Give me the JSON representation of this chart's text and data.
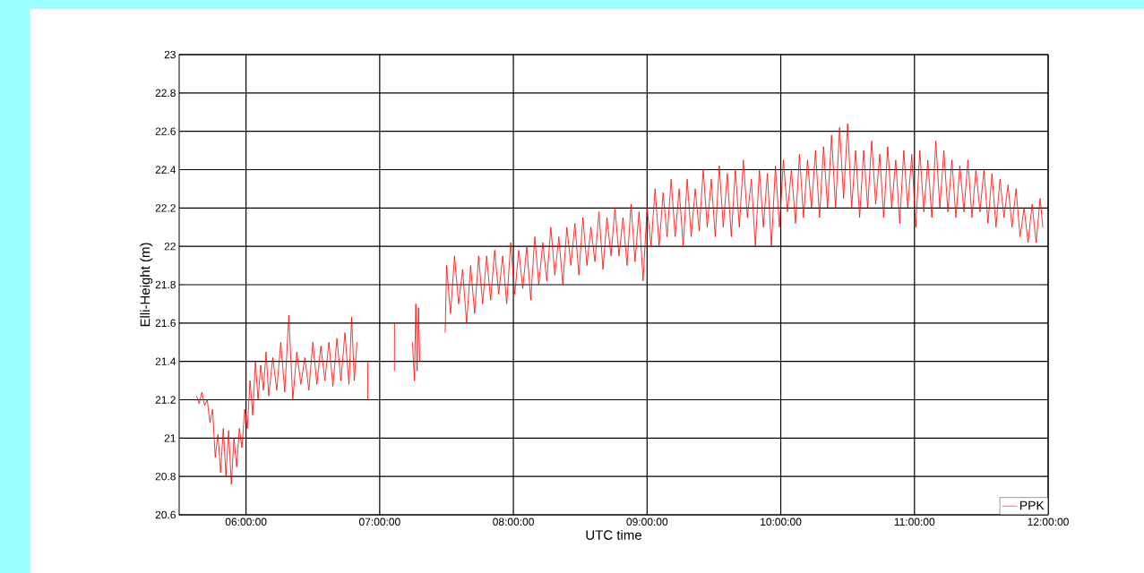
{
  "chart_data": {
    "type": "line",
    "xlabel": "UTC time",
    "ylabel": "Elli-Height (m)",
    "xlim": [
      5.5,
      12
    ],
    "ylim": [
      20.6,
      23
    ],
    "xticks": [
      {
        "value": 6,
        "label": "06:00:00"
      },
      {
        "value": 7,
        "label": "07:00:00"
      },
      {
        "value": 8,
        "label": "08:00:00"
      },
      {
        "value": 9,
        "label": "09:00:00"
      },
      {
        "value": 10,
        "label": "10:00:00"
      },
      {
        "value": 11,
        "label": "11:00:00"
      },
      {
        "value": 12,
        "label": "12:00:00"
      }
    ],
    "yticks": [
      20.6,
      20.8,
      21,
      21.2,
      21.4,
      21.6,
      21.8,
      22,
      22.2,
      22.4,
      22.6,
      22.8,
      23
    ],
    "grid": true,
    "legend": "bottom right",
    "series": [
      {
        "name": "PPK",
        "color": "#ff0000",
        "x": [
          5.63,
          5.65,
          5.67,
          5.69,
          5.71,
          5.73,
          5.75,
          5.76,
          5.77,
          5.79,
          5.81,
          5.83,
          5.85,
          5.87,
          5.89,
          5.91,
          5.93,
          5.95,
          5.97,
          5.99,
          6.01,
          6.03,
          6.05,
          6.07,
          6.09,
          6.11,
          6.13,
          6.15,
          6.17,
          6.2,
          6.23,
          6.26,
          6.29,
          6.32,
          6.35,
          6.38,
          6.41,
          6.44,
          6.47,
          6.5,
          6.53,
          6.56,
          6.59,
          6.62,
          6.65,
          6.68,
          6.71,
          6.74,
          6.77,
          6.79,
          6.81,
          6.83,
          6.87,
          6.91,
          6.911,
          6.95,
          7.11,
          7.111,
          7.18,
          7.245,
          7.26,
          7.27,
          7.28,
          7.29,
          7.3,
          7.4,
          7.49,
          7.5,
          7.53,
          7.56,
          7.59,
          7.62,
          7.65,
          7.68,
          7.71,
          7.74,
          7.77,
          7.8,
          7.83,
          7.86,
          7.89,
          7.92,
          7.95,
          7.98,
          8.01,
          8.04,
          8.07,
          8.1,
          8.13,
          8.16,
          8.19,
          8.22,
          8.25,
          8.28,
          8.31,
          8.34,
          8.37,
          8.4,
          8.43,
          8.46,
          8.49,
          8.52,
          8.55,
          8.58,
          8.61,
          8.64,
          8.67,
          8.7,
          8.73,
          8.76,
          8.79,
          8.82,
          8.85,
          8.88,
          8.91,
          8.94,
          8.97,
          9.0,
          9.03,
          9.06,
          9.09,
          9.12,
          9.15,
          9.18,
          9.21,
          9.24,
          9.27,
          9.3,
          9.33,
          9.36,
          9.39,
          9.42,
          9.45,
          9.48,
          9.51,
          9.54,
          9.57,
          9.6,
          9.63,
          9.66,
          9.69,
          9.72,
          9.75,
          9.78,
          9.81,
          9.84,
          9.87,
          9.9,
          9.93,
          9.96,
          9.99,
          10.02,
          10.05,
          10.08,
          10.11,
          10.14,
          10.17,
          10.2,
          10.23,
          10.26,
          10.29,
          10.32,
          10.35,
          10.38,
          10.41,
          10.44,
          10.47,
          10.5,
          10.53,
          10.56,
          10.59,
          10.62,
          10.65,
          10.68,
          10.71,
          10.74,
          10.77,
          10.8,
          10.83,
          10.86,
          10.89,
          10.92,
          10.95,
          10.98,
          11.01,
          11.04,
          11.07,
          11.1,
          11.13,
          11.16,
          11.19,
          11.22,
          11.25,
          11.28,
          11.31,
          11.34,
          11.37,
          11.4,
          11.43,
          11.46,
          11.49,
          11.52,
          11.55,
          11.58,
          11.61,
          11.64,
          11.67,
          11.7,
          11.73,
          11.76,
          11.79,
          11.82,
          11.85,
          11.88,
          11.91,
          11.94,
          11.96
        ],
        "values": [
          21.22,
          21.18,
          21.24,
          21.17,
          21.2,
          21.08,
          21.15,
          21.02,
          20.9,
          21.02,
          20.82,
          21.05,
          20.8,
          21.04,
          20.76,
          21.0,
          20.85,
          21.05,
          20.95,
          21.15,
          21.05,
          21.3,
          21.12,
          21.4,
          21.2,
          21.38,
          21.25,
          21.45,
          21.22,
          21.42,
          21.25,
          21.5,
          21.24,
          21.64,
          21.2,
          21.45,
          21.28,
          21.42,
          21.25,
          21.5,
          21.28,
          21.48,
          21.3,
          21.5,
          21.27,
          21.52,
          21.3,
          21.55,
          21.28,
          21.63,
          21.3,
          21.5,
          null,
          21.2,
          21.4,
          null,
          21.35,
          21.6,
          null,
          21.5,
          21.3,
          21.7,
          21.35,
          21.68,
          21.4,
          null,
          21.55,
          21.9,
          21.65,
          21.95,
          21.7,
          21.88,
          21.6,
          21.9,
          21.65,
          21.95,
          21.7,
          21.95,
          21.72,
          21.98,
          21.75,
          21.95,
          21.7,
          22.02,
          21.75,
          21.98,
          21.78,
          22.0,
          21.72,
          22.05,
          21.8,
          22.02,
          21.82,
          22.1,
          21.85,
          22.05,
          21.8,
          22.1,
          21.9,
          22.12,
          21.85,
          22.15,
          21.9,
          22.1,
          21.92,
          22.18,
          21.88,
          22.15,
          21.95,
          22.2,
          21.95,
          22.15,
          21.9,
          22.22,
          21.92,
          22.18,
          21.82,
          22.2,
          22.0,
          22.3,
          22.0,
          22.28,
          22.05,
          22.35,
          22.05,
          22.3,
          22.0,
          22.35,
          22.05,
          22.3,
          22.08,
          22.4,
          22.1,
          22.35,
          22.05,
          22.42,
          22.1,
          22.38,
          22.05,
          22.4,
          22.1,
          22.45,
          22.15,
          22.35,
          22.0,
          22.4,
          22.1,
          22.38,
          22.0,
          22.42,
          22.1,
          22.45,
          22.18,
          22.4,
          22.12,
          22.48,
          22.15,
          22.45,
          22.2,
          22.5,
          22.15,
          22.52,
          22.2,
          22.58,
          22.2,
          22.62,
          22.25,
          22.64,
          22.2,
          22.5,
          22.15,
          22.5,
          22.2,
          22.55,
          22.22,
          22.48,
          22.15,
          22.52,
          22.2,
          22.45,
          22.12,
          22.5,
          22.2,
          22.48,
          22.1,
          22.5,
          22.18,
          22.45,
          22.15,
          22.55,
          22.2,
          22.5,
          22.18,
          22.45,
          22.15,
          22.42,
          22.18,
          22.45,
          22.15,
          22.4,
          22.18,
          22.4,
          22.12,
          22.38,
          22.1,
          22.35,
          22.15,
          22.32,
          22.1,
          22.3,
          22.05,
          22.2,
          22.02,
          22.22,
          22.02,
          22.25,
          22.1
        ]
      }
    ]
  }
}
